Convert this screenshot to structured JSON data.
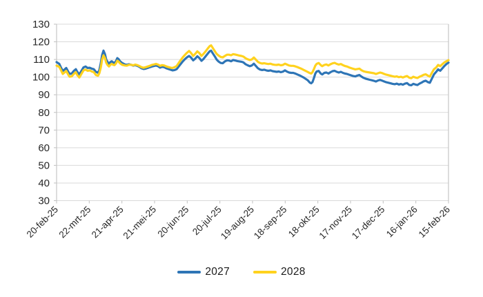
{
  "chart_data": {
    "type": "line",
    "title": "",
    "x_axis": {
      "tick_labels": [
        "20-feb-25",
        "22-mrt-25",
        "21-apr-25",
        "21-mei-25",
        "20-jun-25",
        "20-jul-25",
        "19-aug-25",
        "18-sep-25",
        "18-okt-25",
        "17-nov-25",
        "17-dec-25",
        "16-jan-26",
        "15-feb-26"
      ],
      "tick_interval_days": 30,
      "total_days": 360
    },
    "y_axis": {
      "min": 30,
      "max": 130,
      "step": 10
    },
    "grid": "horizontal",
    "gridline_color": "#D9D9D9",
    "axis_border_color": "#C6C6C6",
    "tick_color": "#BFBFBF",
    "label_color": "#262626",
    "legend": {
      "position": "bottom-center"
    },
    "t_days": [
      0,
      2.5,
      4.4,
      5.7,
      7.6,
      8.9,
      10.8,
      12,
      13.9,
      15.8,
      17.7,
      19,
      20.9,
      22.8,
      24.7,
      26.6,
      28.5,
      30.4,
      32.3,
      34.2,
      36.1,
      38,
      39.3,
      40.6,
      41.8,
      43.1,
      44.4,
      45.6,
      46.9,
      48.2,
      49.4,
      50.7,
      52,
      53.2,
      54.5,
      55.8,
      57,
      58.3,
      60.2,
      62.7,
      64.6,
      66.5,
      68.4,
      70.4,
      72.3,
      74.2,
      76.1,
      78,
      79.9,
      81.8,
      83.7,
      85.6,
      87.5,
      89.4,
      91.3,
      93.2,
      95.1,
      97,
      98.9,
      100.8,
      102.7,
      104.6,
      106.5,
      108.4,
      110.3,
      112.2,
      114.1,
      116,
      117.9,
      119.8,
      121.7,
      123.6,
      125.5,
      127.4,
      129.3,
      131.2,
      133.1,
      135,
      136.9,
      138.8,
      140.7,
      142,
      143.2,
      144.5,
      145.8,
      147,
      148.9,
      150.8,
      152.7,
      154.6,
      156.5,
      158.4,
      160.3,
      162.2,
      164.1,
      166,
      167.9,
      169.8,
      171.7,
      173.6,
      175.5,
      177.4,
      179.3,
      181.2,
      183.1,
      185,
      186.9,
      188.8,
      190.7,
      192.6,
      194.6,
      196.5,
      198.4,
      200.3,
      202.2,
      204.1,
      206,
      207.9,
      209.8,
      211.7,
      213.6,
      215.5,
      217.4,
      219.3,
      221.2,
      223.1,
      225,
      226.9,
      228.8,
      230.7,
      232.6,
      233.9,
      235.1,
      236.4,
      237.7,
      238.9,
      240.8,
      242.7,
      244,
      245.9,
      247.8,
      249.7,
      251.6,
      253.5,
      255.4,
      257.3,
      259.2,
      261.1,
      263,
      264.9,
      266.8,
      268.7,
      270.6,
      272.5,
      274.4,
      276.3,
      278.2,
      280.1,
      282,
      283.9,
      285.8,
      287.7,
      289.6,
      291.5,
      293.4,
      295.3,
      297.2,
      299.1,
      301,
      302.9,
      304.8,
      306.7,
      308.7,
      310.6,
      312.5,
      314.4,
      316.3,
      318.2,
      320.1,
      322,
      323.9,
      325.8,
      327.7,
      329.6,
      331.5,
      333.4,
      335.3,
      337.2,
      339.1,
      341,
      342.9,
      344.8,
      346.7,
      348.6,
      350.5,
      352.4,
      354.3,
      356.2,
      358.1,
      360
    ],
    "series": [
      {
        "name": "2027",
        "color": "#2E75B6",
        "values": [
          108.5,
          107.5,
          105,
          103.5,
          104.5,
          105.2,
          103,
          101.8,
          102,
          103.5,
          104.5,
          103,
          101.5,
          103.5,
          105.5,
          106,
          105.2,
          105.3,
          104.8,
          104.5,
          103,
          102.5,
          104,
          108,
          112.5,
          115,
          113,
          110,
          108.5,
          107.5,
          108.5,
          109,
          108.3,
          108,
          109,
          110.8,
          110.2,
          109,
          108,
          107.2,
          107,
          107.3,
          107,
          106.5,
          106.8,
          106.4,
          105.8,
          105,
          104.6,
          104.8,
          105.2,
          105.6,
          106,
          106.3,
          106.6,
          106.2,
          105.4,
          105.8,
          105.6,
          105,
          104.6,
          104.2,
          103.8,
          104,
          104.5,
          106,
          107.5,
          109,
          110.2,
          111.2,
          112,
          111,
          109.5,
          110.5,
          111.8,
          110.8,
          109.2,
          110.3,
          111.8,
          113.3,
          114.7,
          115,
          113.8,
          112.5,
          111.3,
          110,
          108.8,
          108,
          107.9,
          108.9,
          109.5,
          109.4,
          109,
          109.7,
          109.4,
          109.1,
          108.9,
          108.7,
          108.3,
          107.3,
          106.7,
          106.2,
          106.6,
          107.6,
          106.3,
          105,
          104.3,
          104,
          104.2,
          103.8,
          103.6,
          103.8,
          103.4,
          103.2,
          103,
          103.2,
          102.8,
          103.1,
          103.8,
          103.1,
          102.6,
          102.4,
          102.4,
          102,
          101.5,
          101,
          100.4,
          99.8,
          99,
          98.2,
          96.9,
          96.5,
          97.2,
          99.5,
          102,
          103.2,
          103.5,
          102,
          101.5,
          102.4,
          102.6,
          102,
          102.8,
          103.4,
          103.6,
          103,
          102.6,
          103,
          102.4,
          102,
          101.8,
          101.4,
          101,
          100.6,
          100.4,
          100.9,
          101.2,
          100.3,
          99.6,
          99.1,
          98.8,
          98.5,
          98.2,
          97.9,
          97.5,
          98.1,
          98.4,
          98,
          97.5,
          97.1,
          96.8,
          96.5,
          96.2,
          96,
          96.3,
          95.8,
          96.1,
          95.7,
          96.3,
          96.6,
          95.6,
          95.4,
          96.2,
          95.8,
          95.5,
          96.3,
          96.9,
          97.6,
          98,
          97.2,
          96.8,
          99.2,
          101.6,
          102.9,
          104.4,
          103.6,
          104.9,
          106.3,
          107.4,
          108.2
        ]
      },
      {
        "name": "2028",
        "color": "#FFD21E",
        "values": [
          106.5,
          105.8,
          103.5,
          101.8,
          102.8,
          103.5,
          101.3,
          100.2,
          100.4,
          101.8,
          102.8,
          101.2,
          99.8,
          101.8,
          103.8,
          104.3,
          103.6,
          103.8,
          103.2,
          102.8,
          101.2,
          100.8,
          102.2,
          105.5,
          110,
          112.3,
          110.8,
          108.2,
          106.8,
          106,
          107,
          107.5,
          107,
          106.8,
          107.7,
          109.3,
          108.8,
          107.8,
          107,
          106.6,
          106.5,
          107,
          107,
          106.7,
          107.1,
          106.8,
          106.3,
          105.6,
          105.3,
          105.6,
          106,
          106.4,
          106.9,
          107.2,
          107.5,
          107.1,
          106.4,
          106.8,
          106.6,
          106.1,
          105.7,
          105.4,
          105.2,
          105.6,
          106.3,
          108,
          109.7,
          111.3,
          112.6,
          113.8,
          114.8,
          113.6,
          112,
          113.2,
          114.6,
          113.6,
          112,
          113.2,
          114.6,
          116.2,
          117.6,
          118,
          116.8,
          115.5,
          114.3,
          113.2,
          112.2,
          111.4,
          111.2,
          112,
          112.7,
          112.7,
          112.4,
          113,
          112.8,
          112.5,
          112.2,
          112,
          111.6,
          110.7,
          110.1,
          109.7,
          110,
          111.1,
          109.9,
          108.6,
          108,
          107.7,
          107.9,
          107.6,
          107.4,
          107.6,
          107.2,
          107,
          106.9,
          107.1,
          106.7,
          106.9,
          107.6,
          107.1,
          106.6,
          106.4,
          106.4,
          106.1,
          105.7,
          105.2,
          104.7,
          104.1,
          103.5,
          102.9,
          102.3,
          102,
          102.8,
          104.6,
          106.5,
          107.5,
          108,
          106.8,
          106.2,
          106.9,
          107.2,
          106.6,
          107.3,
          107.8,
          108.1,
          107.5,
          107.1,
          107.4,
          106.8,
          106.3,
          106,
          105.5,
          105.1,
          104.7,
          104.4,
          104.6,
          104.8,
          103.9,
          103.3,
          103,
          102.8,
          102.6,
          102.4,
          102.2,
          101.8,
          102.2,
          102.6,
          102.3,
          101.8,
          101.4,
          101.1,
          100.8,
          100.5,
          100.2,
          100.4,
          100,
          100.2,
          99.8,
          100.3,
          100.6,
          99.7,
          99.4,
          100.2,
          99.8,
          99.5,
          100.2,
          100.7,
          101.3,
          101.6,
          100.9,
          100.3,
          102.5,
          104.5,
          105.4,
          106.9,
          106.2,
          107.3,
          108.3,
          109,
          109.6
        ]
      }
    ]
  }
}
